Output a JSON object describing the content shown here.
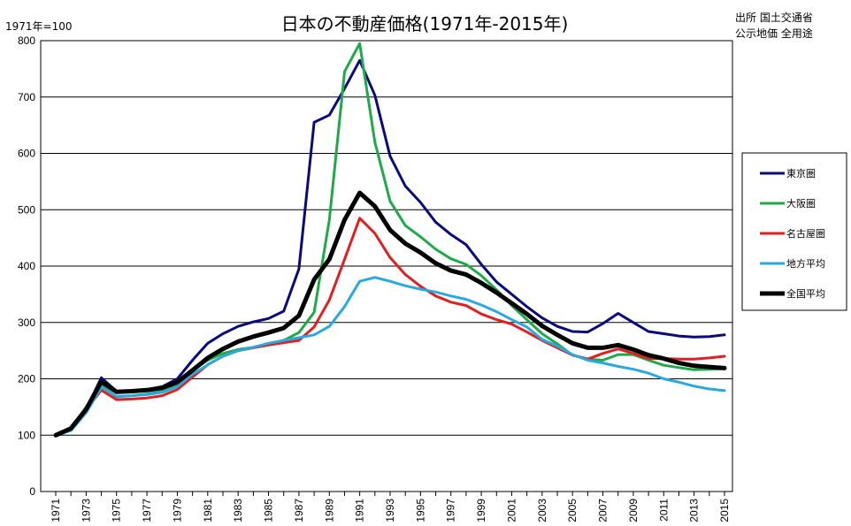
{
  "chart_data": {
    "type": "line",
    "title": "日本の不動産価格(1971年-2015年)",
    "index_note": "1971年=100",
    "source_line1": "出所 国土交通省",
    "source_line2": "公示地価 全用途",
    "xlabel": "",
    "ylabel": "",
    "ylim": [
      0,
      800
    ],
    "yticks": [
      "0",
      "100",
      "200",
      "300",
      "400",
      "500",
      "600",
      "700",
      "800"
    ],
    "grid": true,
    "legend_position": "right",
    "x": [
      1971,
      1972,
      1973,
      1974,
      1975,
      1976,
      1977,
      1978,
      1979,
      1980,
      1981,
      1982,
      1983,
      1984,
      1985,
      1986,
      1987,
      1988,
      1989,
      1990,
      1991,
      1992,
      1993,
      1994,
      1995,
      1996,
      1997,
      1998,
      1999,
      2000,
      2001,
      2002,
      2003,
      2004,
      2005,
      2006,
      2007,
      2008,
      2009,
      2010,
      2011,
      2012,
      2013,
      2014,
      2015
    ],
    "xtick_labels": [
      "1971",
      "1973",
      "1975",
      "1977",
      "1979",
      "1981",
      "1983",
      "1985",
      "1987",
      "1989",
      "1991",
      "1993",
      "1995",
      "1997",
      "1999",
      "2001",
      "2003",
      "2005",
      "2007",
      "2009",
      "2011",
      "2013",
      "2015"
    ],
    "series": [
      {
        "name": "東京圏",
        "color": "#0a0a7a",
        "width": 3,
        "values": [
          100,
          112,
          145,
          202,
          178,
          179,
          181,
          186,
          200,
          233,
          263,
          280,
          293,
          301,
          307,
          320,
          395,
          655,
          668,
          715,
          765,
          703,
          595,
          542,
          513,
          478,
          456,
          438,
          403,
          372,
          350,
          328,
          308,
          293,
          284,
          283,
          298,
          316,
          300,
          284,
          280,
          276,
          274,
          275,
          278
        ]
      },
      {
        "name": "大阪圏",
        "color": "#1faa4a",
        "width": 3,
        "values": [
          100,
          110,
          150,
          188,
          168,
          170,
          173,
          178,
          190,
          215,
          233,
          245,
          252,
          256,
          262,
          268,
          282,
          318,
          482,
          745,
          795,
          620,
          515,
          472,
          452,
          430,
          413,
          403,
          383,
          358,
          330,
          305,
          280,
          262,
          242,
          235,
          233,
          243,
          243,
          233,
          224,
          220,
          216,
          217,
          218
        ]
      },
      {
        "name": "名古屋圏",
        "color": "#e02020",
        "width": 3,
        "values": [
          100,
          110,
          145,
          180,
          163,
          164,
          166,
          170,
          181,
          203,
          225,
          240,
          250,
          255,
          260,
          264,
          268,
          292,
          340,
          412,
          485,
          458,
          415,
          385,
          364,
          347,
          336,
          330,
          315,
          305,
          297,
          283,
          268,
          255,
          242,
          235,
          245,
          253,
          245,
          236,
          236,
          235,
          235,
          237,
          240
        ]
      },
      {
        "name": "地方平均",
        "color": "#2aa9e0",
        "width": 3,
        "values": [
          100,
          108,
          140,
          185,
          169,
          170,
          172,
          176,
          186,
          208,
          225,
          240,
          250,
          256,
          263,
          268,
          273,
          278,
          293,
          328,
          373,
          380,
          373,
          365,
          359,
          354,
          347,
          341,
          331,
          319,
          305,
          292,
          270,
          258,
          243,
          233,
          228,
          222,
          217,
          210,
          200,
          194,
          187,
          182,
          179
        ]
      },
      {
        "name": "全国平均",
        "color": "#000000",
        "width": 5,
        "values": [
          100,
          112,
          146,
          195,
          177,
          178,
          180,
          184,
          194,
          215,
          237,
          253,
          266,
          275,
          282,
          290,
          312,
          376,
          412,
          482,
          530,
          506,
          464,
          440,
          424,
          405,
          392,
          385,
          370,
          353,
          334,
          315,
          294,
          278,
          263,
          255,
          255,
          260,
          252,
          242,
          236,
          228,
          223,
          221,
          219
        ]
      }
    ]
  }
}
